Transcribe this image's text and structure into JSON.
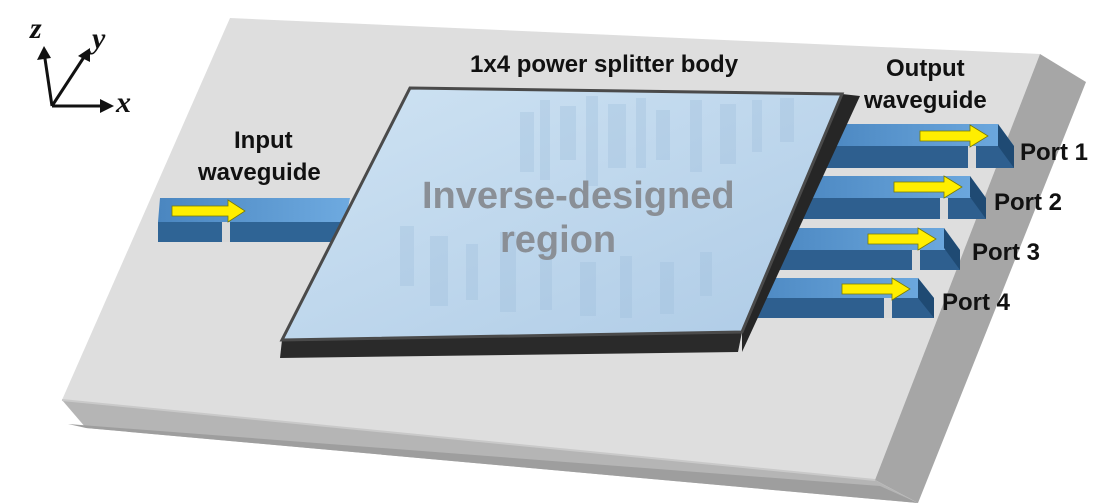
{
  "axes": {
    "z": "z",
    "y": "y",
    "x": "x"
  },
  "labels": {
    "body": "1x4 power splitter body",
    "output_line1": "Output",
    "output_line2": "waveguide",
    "input_line1": "Input",
    "input_line2": "waveguide",
    "region_line1": "Inverse-designed",
    "region_line2": "region"
  },
  "ports": [
    "Port 1",
    "Port 2",
    "Port 3",
    "Port 4"
  ],
  "colors": {
    "substrate_top": "#dcdcdc",
    "substrate_side": "#a9a9a9",
    "substrate_front": "#b8b8b8",
    "region_fill": "#bcd6ec",
    "region_edge": "#3a3a3a",
    "waveguide_top": "#5b9bd5",
    "waveguide_side": "#2e5f8f",
    "arrow": "#ffff00"
  }
}
